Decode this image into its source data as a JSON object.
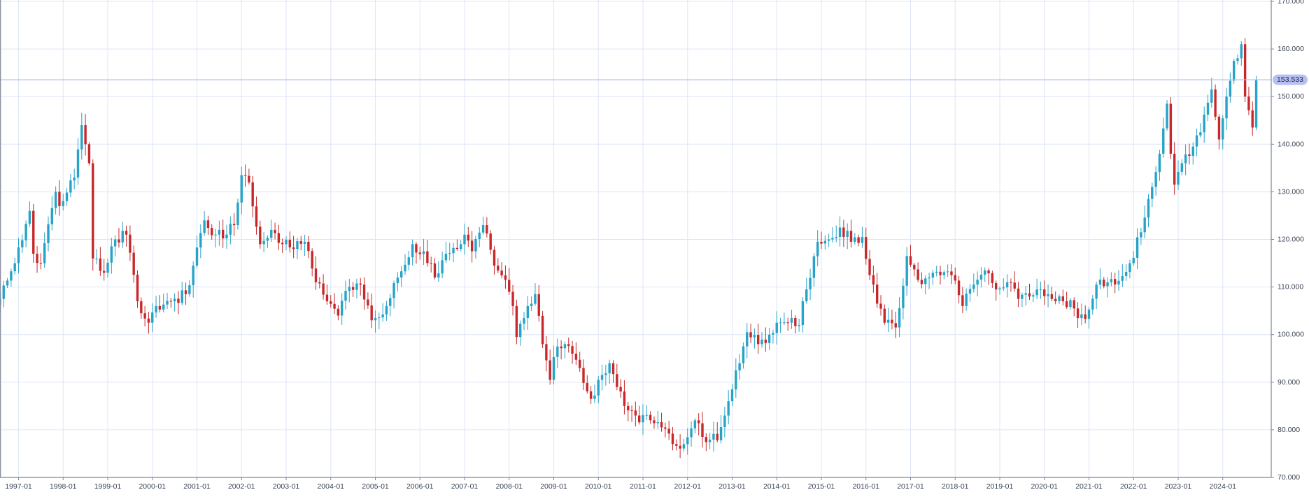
{
  "chart_data": {
    "type": "candlestick",
    "title": "",
    "xlabel": "",
    "ylabel": "",
    "ylim": [
      70,
      170
    ],
    "y_ticks": [
      "70.000",
      "80.000",
      "90.000",
      "100.000",
      "110.000",
      "120.000",
      "130.000",
      "140.000",
      "150.000",
      "160.000",
      "170.000"
    ],
    "x_ticks": [
      "1997-01",
      "1998-01",
      "1999-01",
      "2000-01",
      "2001-01",
      "2002-01",
      "2003-01",
      "2004-01",
      "2005-01",
      "2006-01",
      "2007-01",
      "2008-01",
      "2009-01",
      "2010-01",
      "2011-01",
      "2012-01",
      "2013-01",
      "2014-01",
      "2015-01",
      "2016-01",
      "2017-01",
      "2018-01",
      "2019-01",
      "2020-01",
      "2021-01",
      "2022-01",
      "2023-01",
      "2024-01"
    ],
    "last_price": 153.533,
    "last_price_label": "153.533",
    "colors": {
      "up": "#26a3c8",
      "down": "#c8282a",
      "grid": "#dfe5f7",
      "axis": "#7d8597",
      "price_line": "#b3bff0",
      "price_badge": "#b6c0f2"
    },
    "period_start": "1996-08",
    "interval": "monthly",
    "close_anchors": [
      [
        "1996-08",
        107.5
      ],
      [
        "1996-12",
        115.0
      ],
      [
        "1997-04",
        126.0
      ],
      [
        "1997-05",
        117.0
      ],
      [
        "1997-07",
        115.0
      ],
      [
        "1997-11",
        130.0
      ],
      [
        "1997-12",
        127.0
      ],
      [
        "1998-04",
        133.0
      ],
      [
        "1998-06",
        144.0
      ],
      [
        "1998-07",
        140.0
      ],
      [
        "1998-08",
        136.0
      ],
      [
        "1998-09",
        116.0
      ],
      [
        "1998-10",
        116.0
      ],
      [
        "1998-12",
        113.0
      ],
      [
        "1999-03",
        120.0
      ],
      [
        "1999-06",
        121.0
      ],
      [
        "1999-09",
        107.0
      ],
      [
        "1999-12",
        102.5
      ],
      [
        "2000-02",
        106.0
      ],
      [
        "2000-06",
        107.0
      ],
      [
        "2000-10",
        108.5
      ],
      [
        "2000-12",
        114.5
      ],
      [
        "2001-03",
        124.0
      ],
      [
        "2001-06",
        121.0
      ],
      [
        "2001-09",
        121.0
      ],
      [
        "2001-11",
        123.0
      ],
      [
        "2002-01",
        133.5
      ],
      [
        "2002-03",
        132.0
      ],
      [
        "2002-06",
        119.0
      ],
      [
        "2002-09",
        122.0
      ],
      [
        "2002-12",
        119.0
      ],
      [
        "2003-03",
        118.0
      ],
      [
        "2003-06",
        119.5
      ],
      [
        "2003-09",
        111.0
      ],
      [
        "2003-12",
        107.0
      ],
      [
        "2004-03",
        104.0
      ],
      [
        "2004-06",
        110.0
      ],
      [
        "2004-09",
        110.5
      ],
      [
        "2004-12",
        103.0
      ],
      [
        "2005-01",
        103.5
      ],
      [
        "2005-04",
        106.0
      ],
      [
        "2005-07",
        112.0
      ],
      [
        "2005-11",
        119.0
      ],
      [
        "2006-02",
        117.5
      ],
      [
        "2006-05",
        112.0
      ],
      [
        "2006-08",
        117.0
      ],
      [
        "2006-11",
        118.0
      ],
      [
        "2007-01",
        121.0
      ],
      [
        "2007-03",
        117.5
      ],
      [
        "2007-06",
        123.0
      ],
      [
        "2007-09",
        114.5
      ],
      [
        "2007-12",
        111.5
      ],
      [
        "2008-02",
        106.0
      ],
      [
        "2008-03",
        99.5
      ],
      [
        "2008-06",
        106.0
      ],
      [
        "2008-08",
        108.5
      ],
      [
        "2008-10",
        98.0
      ],
      [
        "2008-12",
        90.5
      ],
      [
        "2009-02",
        97.5
      ],
      [
        "2009-04",
        98.0
      ],
      [
        "2009-06",
        96.0
      ],
      [
        "2009-08",
        93.0
      ],
      [
        "2009-11",
        86.5
      ],
      [
        "2010-01",
        90.5
      ],
      [
        "2010-04",
        94.0
      ],
      [
        "2010-06",
        89.0
      ],
      [
        "2010-08",
        85.0
      ],
      [
        "2010-11",
        83.0
      ],
      [
        "2011-03",
        82.0
      ],
      [
        "2011-06",
        80.5
      ],
      [
        "2011-09",
        77.0
      ],
      [
        "2011-12",
        77.0
      ],
      [
        "2012-03",
        82.0
      ],
      [
        "2012-05",
        78.5
      ],
      [
        "2012-09",
        77.8
      ],
      [
        "2012-12",
        86.0
      ],
      [
        "2013-02",
        92.5
      ],
      [
        "2013-05",
        100.5
      ],
      [
        "2013-08",
        98.0
      ],
      [
        "2013-11",
        100.0
      ],
      [
        "2014-01",
        102.5
      ],
      [
        "2014-04",
        102.5
      ],
      [
        "2014-07",
        102.0
      ],
      [
        "2014-09",
        109.5
      ],
      [
        "2014-12",
        119.5
      ],
      [
        "2015-03",
        120.0
      ],
      [
        "2015-06",
        122.5
      ],
      [
        "2015-09",
        119.5
      ],
      [
        "2015-12",
        120.5
      ],
      [
        "2016-02",
        112.5
      ],
      [
        "2016-04",
        106.5
      ],
      [
        "2016-06",
        102.5
      ],
      [
        "2016-09",
        101.5
      ],
      [
        "2016-12",
        116.5
      ],
      [
        "2017-03",
        111.5
      ],
      [
        "2017-06",
        112.0
      ],
      [
        "2017-09",
        112.5
      ],
      [
        "2017-12",
        112.5
      ],
      [
        "2018-03",
        106.0
      ],
      [
        "2018-06",
        110.5
      ],
      [
        "2018-09",
        113.5
      ],
      [
        "2018-12",
        109.5
      ],
      [
        "2019-03",
        111.0
      ],
      [
        "2019-06",
        107.5
      ],
      [
        "2019-09",
        108.0
      ],
      [
        "2019-12",
        109.5
      ],
      [
        "2020-03",
        107.5
      ],
      [
        "2020-06",
        107.0
      ],
      [
        "2020-09",
        105.5
      ],
      [
        "2020-12",
        103.3
      ],
      [
        "2021-03",
        110.5
      ],
      [
        "2021-06",
        111.0
      ],
      [
        "2021-09",
        111.3
      ],
      [
        "2021-12",
        115.0
      ],
      [
        "2022-03",
        121.5
      ],
      [
        "2022-05",
        128.5
      ],
      [
        "2022-08",
        138.0
      ],
      [
        "2022-10",
        148.5
      ],
      [
        "2022-11",
        138.0
      ],
      [
        "2022-12",
        131.5
      ],
      [
        "2023-02",
        136.0
      ],
      [
        "2023-05",
        139.5
      ],
      [
        "2023-07",
        142.5
      ],
      [
        "2023-10",
        151.5
      ],
      [
        "2023-12",
        141.0
      ],
      [
        "2024-02",
        150.0
      ],
      [
        "2024-04",
        157.5
      ],
      [
        "2024-06",
        161.0
      ],
      [
        "2024-07",
        150.0
      ],
      [
        "2024-09",
        143.5
      ],
      [
        "2024-10",
        153.533
      ]
    ]
  }
}
